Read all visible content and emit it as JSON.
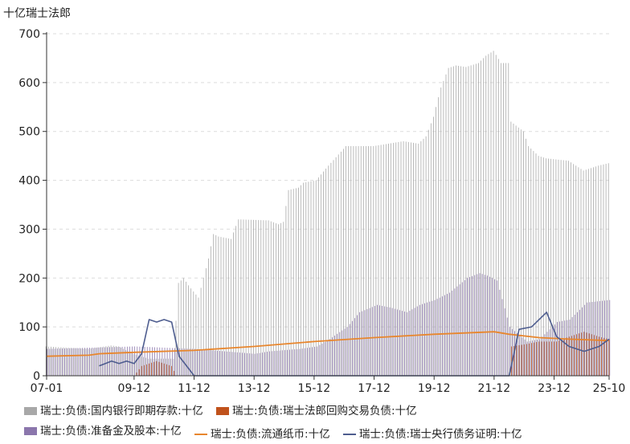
{
  "chart_data": {
    "type": "bar",
    "unit": "十亿瑞士法郎",
    "xlim": [
      "2007-01",
      "2025-10"
    ],
    "ylim": [
      0,
      700
    ],
    "yticks": [
      0,
      100,
      200,
      300,
      400,
      500,
      600,
      700
    ],
    "xtick_labels": [
      "07-01",
      "09-12",
      "11-12",
      "13-12",
      "15-12",
      "17-12",
      "19-12",
      "21-12",
      "23-12",
      "25-10"
    ],
    "xtick_dates": [
      "2007-01",
      "2009-12",
      "2011-12",
      "2013-12",
      "2015-12",
      "2017-12",
      "2019-12",
      "2021-12",
      "2023-12",
      "2025-10"
    ],
    "legend_position": "bottom",
    "series": [
      {
        "name": "瑞士:负债:国内银行即期存款:十亿",
        "mark": "bar",
        "color": "#a8a8a8",
        "points": [
          [
            "2007-01",
            60
          ],
          [
            "2008-06",
            55
          ],
          [
            "2008-10",
            58
          ],
          [
            "2009-03",
            62
          ],
          [
            "2009-06",
            60
          ],
          [
            "2009-12",
            45
          ],
          [
            "2010-06",
            35
          ],
          [
            "2010-12",
            35
          ],
          [
            "2011-04",
            35
          ],
          [
            "2011-06",
            190
          ],
          [
            "2011-08",
            200
          ],
          [
            "2011-10",
            185
          ],
          [
            "2012-02",
            160
          ],
          [
            "2012-06",
            240
          ],
          [
            "2012-08",
            290
          ],
          [
            "2012-10",
            285
          ],
          [
            "2013-03",
            280
          ],
          [
            "2013-06",
            320
          ],
          [
            "2014-06",
            318
          ],
          [
            "2014-10",
            310
          ],
          [
            "2014-12",
            315
          ],
          [
            "2015-02",
            380
          ],
          [
            "2015-06",
            385
          ],
          [
            "2015-08",
            395
          ],
          [
            "2016-01",
            400
          ],
          [
            "2016-06",
            430
          ],
          [
            "2017-01",
            470
          ],
          [
            "2017-12",
            470
          ],
          [
            "2018-12",
            480
          ],
          [
            "2019-06",
            475
          ],
          [
            "2019-09",
            490
          ],
          [
            "2019-12",
            530
          ],
          [
            "2020-03",
            590
          ],
          [
            "2020-06",
            630
          ],
          [
            "2020-09",
            635
          ],
          [
            "2021-01",
            632
          ],
          [
            "2021-06",
            640
          ],
          [
            "2021-09",
            655
          ],
          [
            "2021-12",
            665
          ],
          [
            "2022-03",
            640
          ],
          [
            "2022-06",
            640
          ],
          [
            "2022-07",
            520
          ],
          [
            "2022-12",
            500
          ],
          [
            "2023-02",
            470
          ],
          [
            "2023-06",
            450
          ],
          [
            "2023-09",
            445
          ],
          [
            "2024-06",
            440
          ],
          [
            "2024-12",
            420
          ],
          [
            "2025-06",
            430
          ],
          [
            "2025-10",
            435
          ]
        ]
      },
      {
        "name": "瑞士:负债:瑞士法郎回购交易负债:十亿",
        "mark": "bar",
        "color": "#c0521c",
        "points": [
          [
            "2009-12",
            0
          ],
          [
            "2010-03",
            20
          ],
          [
            "2010-06",
            25
          ],
          [
            "2010-09",
            30
          ],
          [
            "2010-12",
            25
          ],
          [
            "2011-03",
            20
          ],
          [
            "2011-05",
            0
          ],
          [
            "2022-06",
            0
          ],
          [
            "2022-07",
            60
          ],
          [
            "2023-01",
            65
          ],
          [
            "2023-06",
            70
          ],
          [
            "2024-01",
            70
          ],
          [
            "2024-06",
            80
          ],
          [
            "2024-12",
            90
          ],
          [
            "2025-06",
            80
          ],
          [
            "2025-10",
            75
          ]
        ]
      },
      {
        "name": "瑞士:负债:准备金及股本:十亿",
        "mark": "bar",
        "color": "#8b76ac",
        "points": [
          [
            "2007-01",
            55
          ],
          [
            "2009-12",
            60
          ],
          [
            "2011-12",
            55
          ],
          [
            "2013-12",
            45
          ],
          [
            "2014-06",
            50
          ],
          [
            "2015-06",
            55
          ],
          [
            "2016-01",
            60
          ],
          [
            "2016-06",
            75
          ],
          [
            "2017-01",
            100
          ],
          [
            "2017-06",
            130
          ],
          [
            "2018-01",
            145
          ],
          [
            "2018-06",
            140
          ],
          [
            "2019-01",
            130
          ],
          [
            "2019-06",
            145
          ],
          [
            "2019-12",
            155
          ],
          [
            "2020-06",
            170
          ],
          [
            "2021-01",
            200
          ],
          [
            "2021-06",
            210
          ],
          [
            "2021-09",
            205
          ],
          [
            "2022-01",
            195
          ],
          [
            "2022-06",
            100
          ],
          [
            "2023-01",
            70
          ],
          [
            "2023-06",
            75
          ],
          [
            "2024-01",
            110
          ],
          [
            "2024-06",
            115
          ],
          [
            "2025-01",
            150
          ],
          [
            "2025-10",
            155
          ]
        ]
      },
      {
        "name": "瑞士:负债:流通纸币:十亿",
        "mark": "line",
        "color": "#e8862d",
        "points": [
          [
            "2007-01",
            40
          ],
          [
            "2008-06",
            42
          ],
          [
            "2008-10",
            45
          ],
          [
            "2009-12",
            48
          ],
          [
            "2011-12",
            52
          ],
          [
            "2013-12",
            60
          ],
          [
            "2015-12",
            70
          ],
          [
            "2017-12",
            78
          ],
          [
            "2019-12",
            85
          ],
          [
            "2021-12",
            90
          ],
          [
            "2022-06",
            85
          ],
          [
            "2023-06",
            78
          ],
          [
            "2024-06",
            75
          ],
          [
            "2025-10",
            72
          ]
        ]
      },
      {
        "name": "瑞士:负债:瑞士央行债务证明:十亿",
        "mark": "line",
        "color": "#4e5d8f",
        "points": [
          [
            "2008-10",
            20
          ],
          [
            "2009-03",
            30
          ],
          [
            "2009-06",
            25
          ],
          [
            "2009-09",
            30
          ],
          [
            "2009-12",
            25
          ],
          [
            "2010-03",
            45
          ],
          [
            "2010-06",
            115
          ],
          [
            "2010-09",
            110
          ],
          [
            "2010-12",
            115
          ],
          [
            "2011-03",
            110
          ],
          [
            "2011-06",
            40
          ],
          [
            "2011-09",
            20
          ],
          [
            "2011-12",
            0
          ],
          [
            "2022-06",
            0
          ],
          [
            "2022-10",
            95
          ],
          [
            "2023-03",
            100
          ],
          [
            "2023-09",
            130
          ],
          [
            "2024-01",
            80
          ],
          [
            "2024-06",
            60
          ],
          [
            "2024-12",
            50
          ],
          [
            "2025-06",
            60
          ],
          [
            "2025-10",
            75
          ]
        ]
      }
    ]
  }
}
